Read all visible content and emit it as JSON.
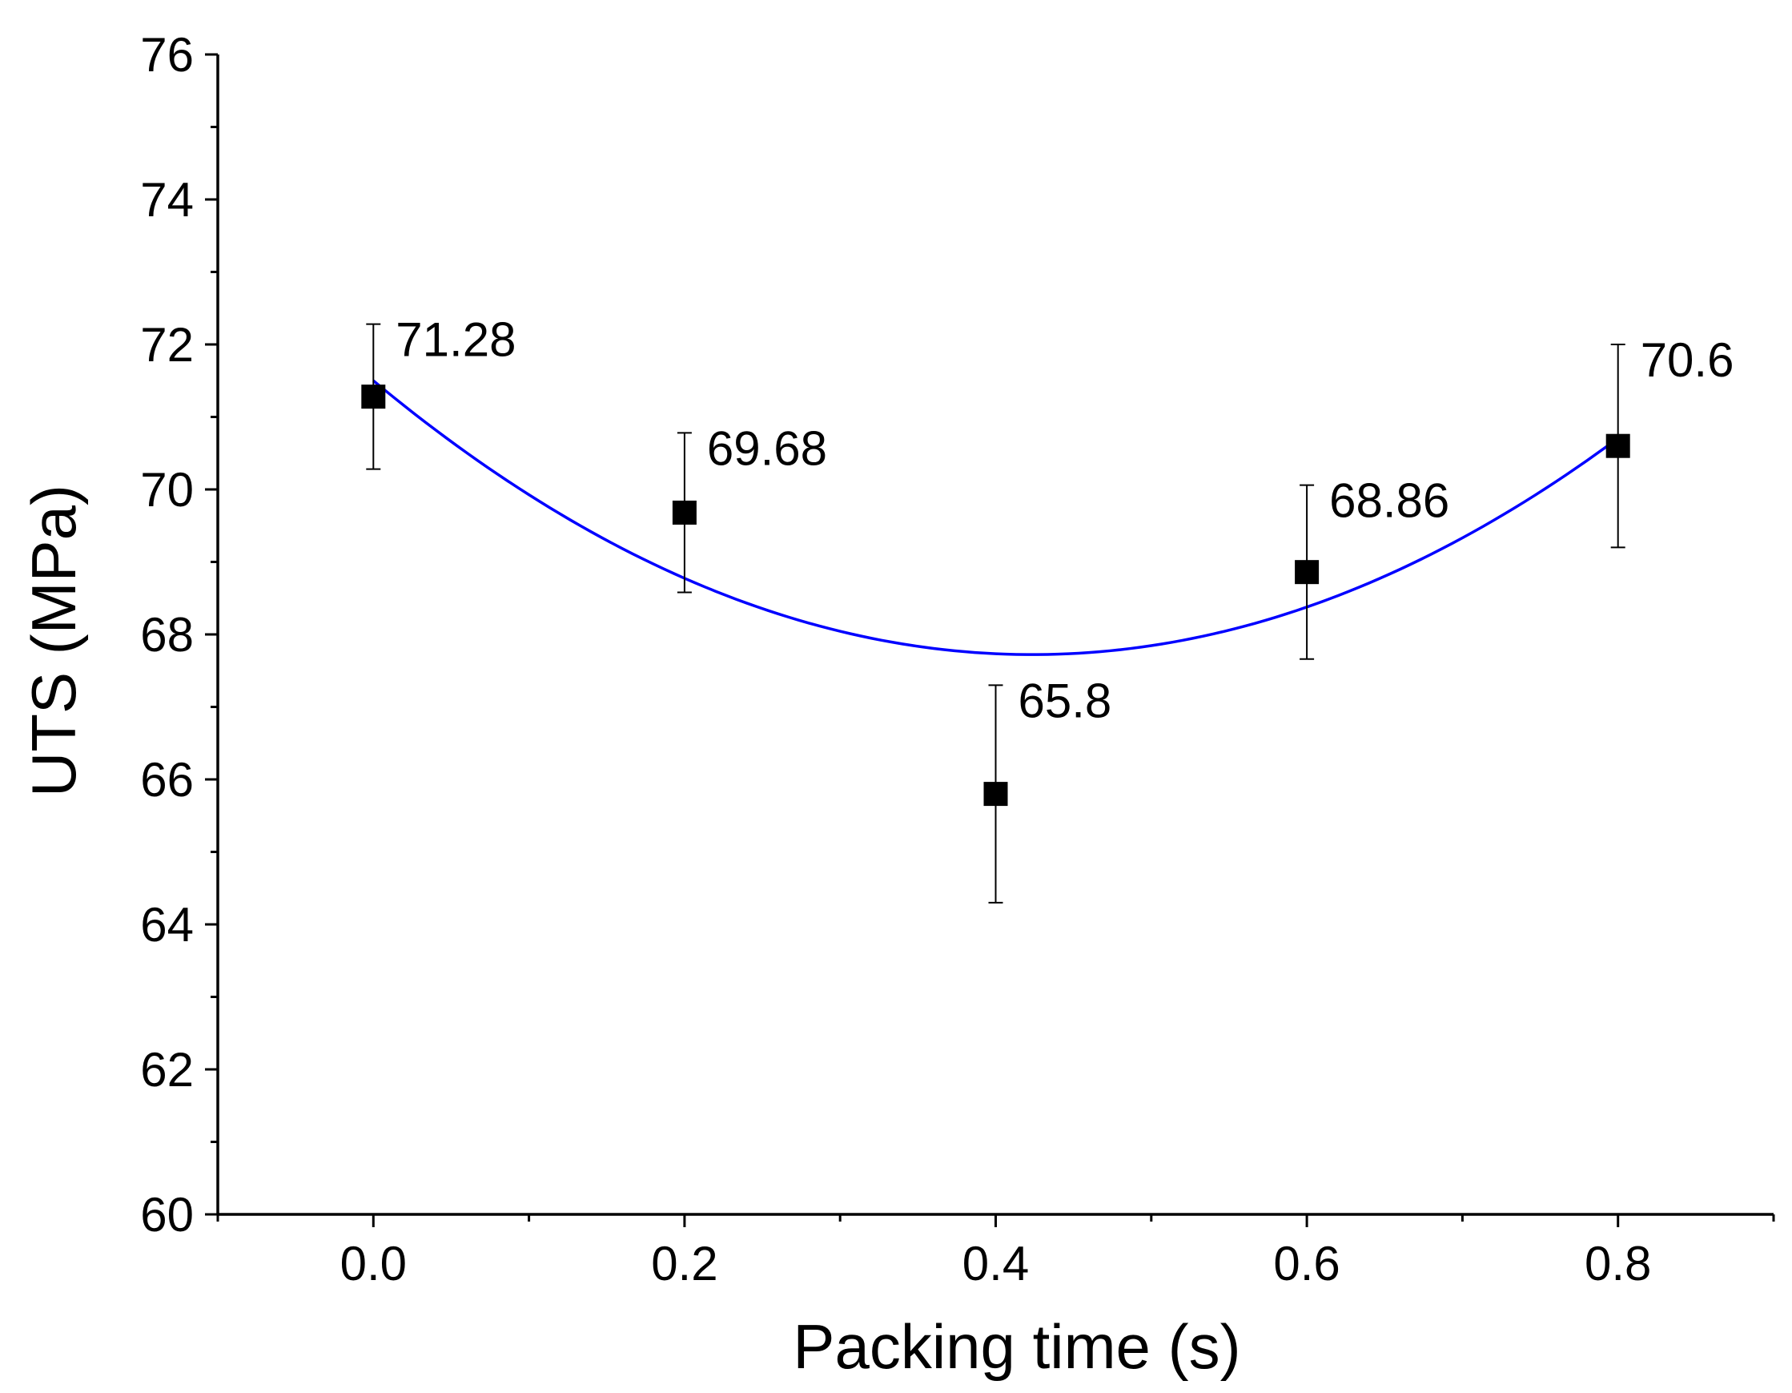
{
  "chart_data": {
    "type": "scatter",
    "title": "",
    "xlabel": "Packing time (s)",
    "ylabel": "UTS (MPa)",
    "xlim": [
      -0.1,
      0.9
    ],
    "ylim": [
      60,
      76
    ],
    "x_ticks": [
      0.0,
      0.2,
      0.4,
      0.6,
      0.8
    ],
    "x_tick_labels": [
      "0.0",
      "0.2",
      "0.4",
      "0.6",
      "0.8"
    ],
    "y_ticks": [
      60,
      62,
      64,
      66,
      68,
      70,
      72,
      74,
      76
    ],
    "y_tick_labels": [
      "60",
      "62",
      "64",
      "66",
      "68",
      "70",
      "72",
      "74",
      "76"
    ],
    "grid": false,
    "series": [
      {
        "name": "UTS",
        "marker": "square",
        "color": "#000000",
        "x": [
          0.0,
          0.2,
          0.4,
          0.6,
          0.8
        ],
        "y": [
          71.28,
          69.68,
          65.8,
          68.86,
          70.6
        ],
        "error_low": [
          70.28,
          68.58,
          64.3,
          67.66,
          69.2
        ],
        "error_high": [
          72.28,
          70.78,
          67.3,
          70.06,
          72.0
        ],
        "labels": [
          "71.28",
          "69.68",
          "65.8",
          "68.86",
          "70.6"
        ]
      },
      {
        "name": "Quadratic fit",
        "type": "line",
        "color": "#0000ff",
        "x_range": [
          0.0,
          0.8
        ],
        "coefficients": [
          71.5,
          -17.84,
          21.06
        ]
      }
    ]
  }
}
